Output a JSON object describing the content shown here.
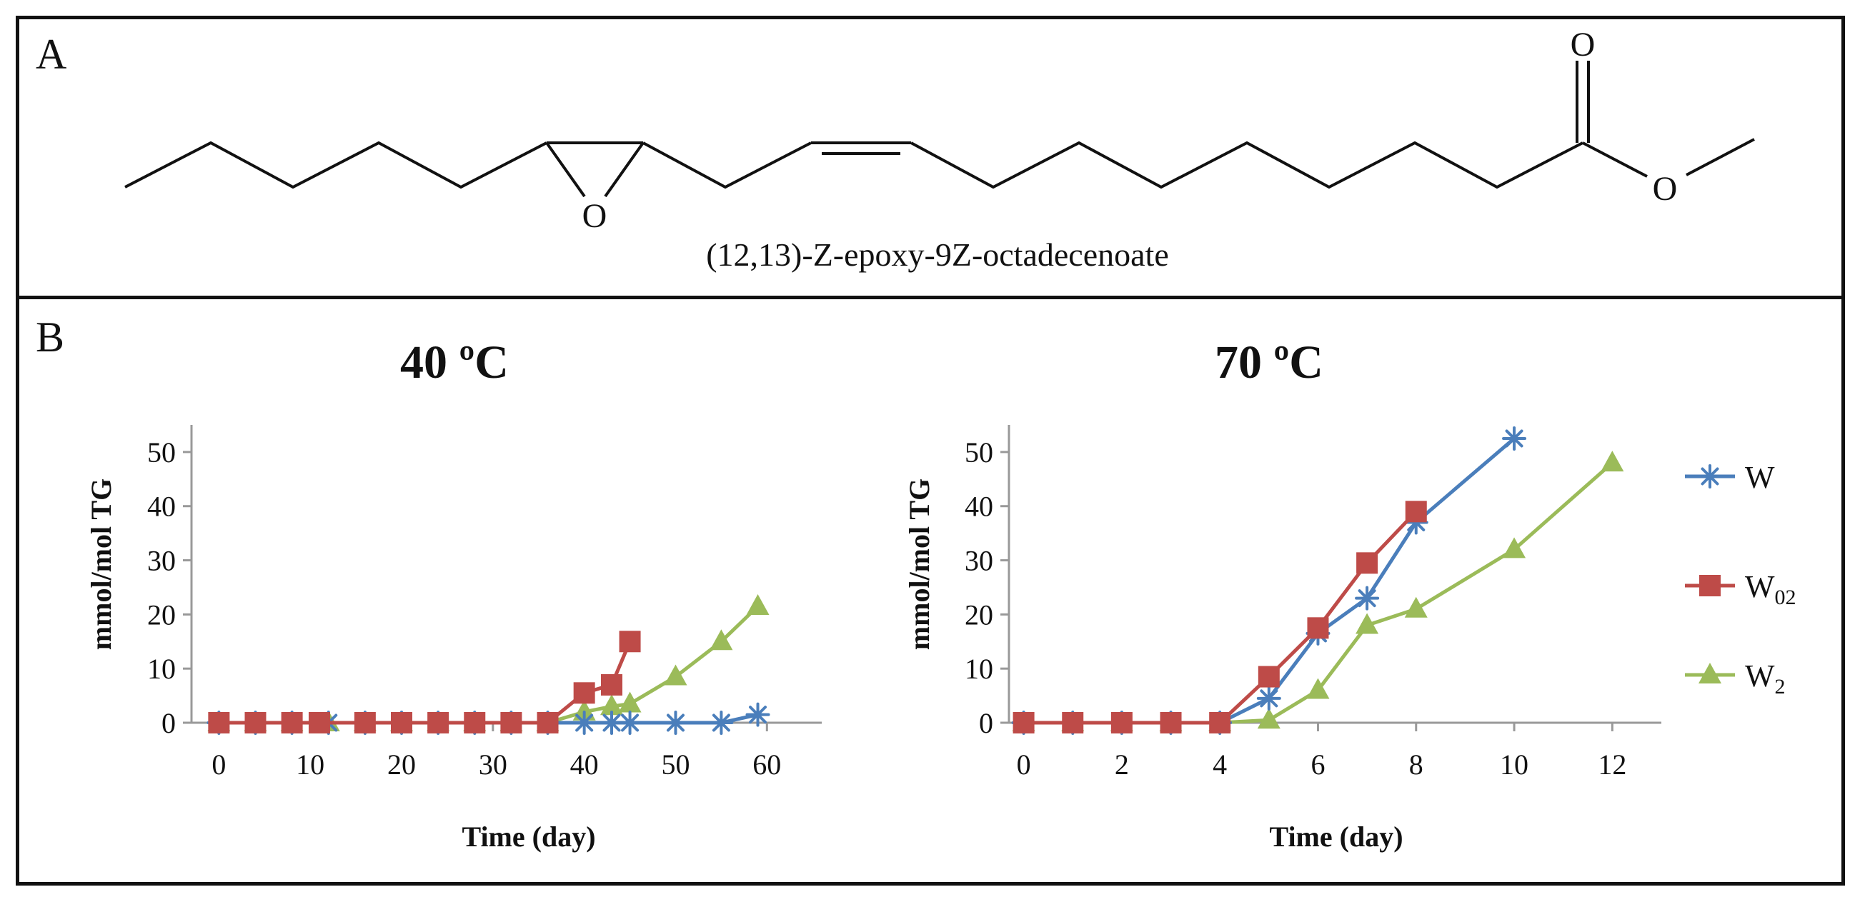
{
  "panel_a": {
    "letter": "A",
    "compound_name": "(12,13)-Z-epoxy-9Z-octadecenoate",
    "atoms": {
      "epoxide_oxygen": "O",
      "carbonyl_oxygen": "O",
      "ester_oxygen": "O"
    }
  },
  "panel_b": {
    "letter": "B"
  },
  "colors": {
    "W": "#4a7ebb",
    "W02": "#be4b48",
    "W2": "#9bbb59",
    "axis": "#999999"
  },
  "legend": [
    {
      "series": "W",
      "label": "W",
      "subscript": "",
      "marker": "star"
    },
    {
      "series": "W02",
      "label": "W",
      "subscript": "02",
      "marker": "square"
    },
    {
      "series": "W2",
      "label": "W",
      "subscript": "2",
      "marker": "triangle"
    }
  ],
  "chart_data": [
    {
      "type": "line",
      "title": "40 ºC",
      "xlabel": "Time (day)",
      "ylabel": "mmol/mol TG",
      "xlim": [
        -3,
        66
      ],
      "ylim": [
        0,
        55
      ],
      "xticks": [
        0,
        10,
        20,
        30,
        40,
        50,
        60
      ],
      "yticks": [
        0,
        10,
        20,
        30,
        40,
        50
      ],
      "series": [
        {
          "name": "W",
          "marker": "star",
          "x": [
            0,
            4,
            8,
            12,
            16,
            20,
            24,
            28,
            32,
            36,
            40,
            43,
            45,
            50,
            55,
            59
          ],
          "y": [
            0,
            0,
            0,
            0,
            0,
            0,
            0,
            0,
            0,
            0,
            0,
            0,
            0,
            0,
            0,
            1.5
          ]
        },
        {
          "name": "W02",
          "marker": "square",
          "x": [
            0,
            4,
            8,
            11,
            16,
            20,
            24,
            28,
            32,
            36,
            40,
            43,
            45
          ],
          "y": [
            0,
            0,
            0,
            0,
            0,
            0,
            0,
            0,
            0,
            0,
            5.5,
            7,
            15
          ]
        },
        {
          "name": "W2",
          "marker": "triangle",
          "x": [
            0,
            4,
            8,
            12,
            16,
            20,
            24,
            28,
            32,
            36,
            40,
            43,
            45,
            50,
            55,
            59
          ],
          "y": [
            0,
            0,
            0,
            0,
            0,
            0,
            0,
            0,
            0,
            0,
            2,
            3,
            3.5,
            8.5,
            15,
            21.5
          ]
        }
      ]
    },
    {
      "type": "line",
      "title": "70 ºC",
      "xlabel": "Time (day)",
      "ylabel": "mmol/mol TG",
      "xlim": [
        -0.3,
        13
      ],
      "ylim": [
        0,
        55
      ],
      "xticks": [
        0,
        2,
        4,
        6,
        8,
        10,
        12
      ],
      "yticks": [
        0,
        10,
        20,
        30,
        40,
        50
      ],
      "series": [
        {
          "name": "W",
          "marker": "star",
          "x": [
            0,
            1,
            2,
            3,
            4,
            5,
            6,
            7,
            8,
            10
          ],
          "y": [
            0,
            0,
            0,
            0,
            0,
            4.5,
            16.5,
            23,
            37,
            52.5
          ]
        },
        {
          "name": "W02",
          "marker": "square",
          "x": [
            0,
            1,
            2,
            3,
            4,
            5,
            6,
            7,
            8
          ],
          "y": [
            0,
            0,
            0,
            0,
            0,
            8.5,
            17.5,
            29.5,
            39
          ]
        },
        {
          "name": "W2",
          "marker": "triangle",
          "x": [
            0,
            1,
            2,
            3,
            4,
            5,
            6,
            7,
            8,
            10,
            12
          ],
          "y": [
            0,
            0,
            0,
            0,
            0,
            0.5,
            6,
            18,
            21,
            32,
            48
          ]
        }
      ]
    }
  ]
}
